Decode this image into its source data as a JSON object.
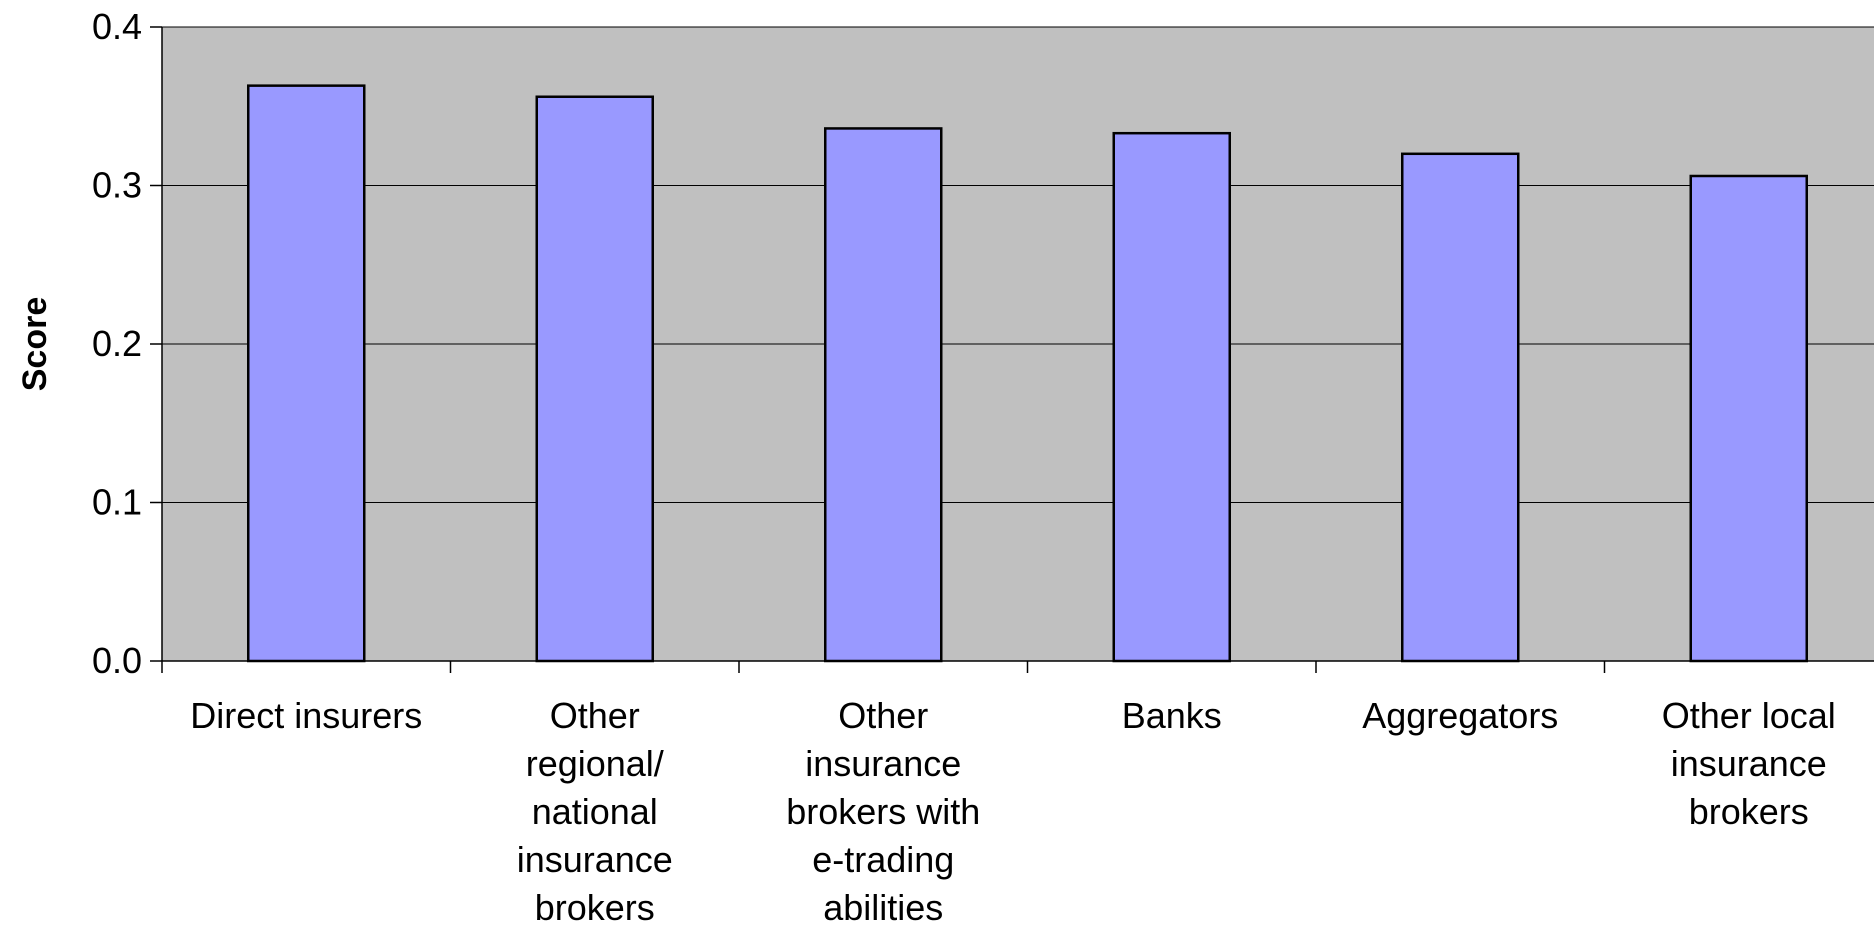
{
  "chart_data": {
    "type": "bar",
    "title": "",
    "xlabel": "",
    "ylabel": "Score",
    "ylim": [
      0,
      0.4
    ],
    "yticks": [
      {
        "value": 0.0,
        "label": "0.0"
      },
      {
        "value": 0.1,
        "label": "0.1"
      },
      {
        "value": 0.2,
        "label": "0.2"
      },
      {
        "value": 0.3,
        "label": "0.3"
      },
      {
        "value": 0.4,
        "label": "0.4"
      }
    ],
    "categories": [
      "Direct insurers",
      "Other regional/ national insurance brokers",
      "Other insurance brokers with e-trading abilities",
      "Banks",
      "Aggregators",
      "Other local insurance brokers"
    ],
    "category_lines": [
      [
        "Direct insurers"
      ],
      [
        "Other",
        "regional/",
        "national",
        "insurance",
        "brokers"
      ],
      [
        "Other",
        "insurance",
        "brokers with",
        "e-trading",
        "abilities"
      ],
      [
        "Banks"
      ],
      [
        "Aggregators"
      ],
      [
        "Other local",
        "insurance",
        "brokers"
      ]
    ],
    "values": [
      0.363,
      0.356,
      0.336,
      0.333,
      0.32,
      0.306
    ],
    "grid": true,
    "legend": "none",
    "colors": {
      "bar_fill": "#9999ff",
      "bar_stroke": "#000000",
      "plot_background": "#c0c0c0",
      "gridline": "#000000"
    }
  }
}
